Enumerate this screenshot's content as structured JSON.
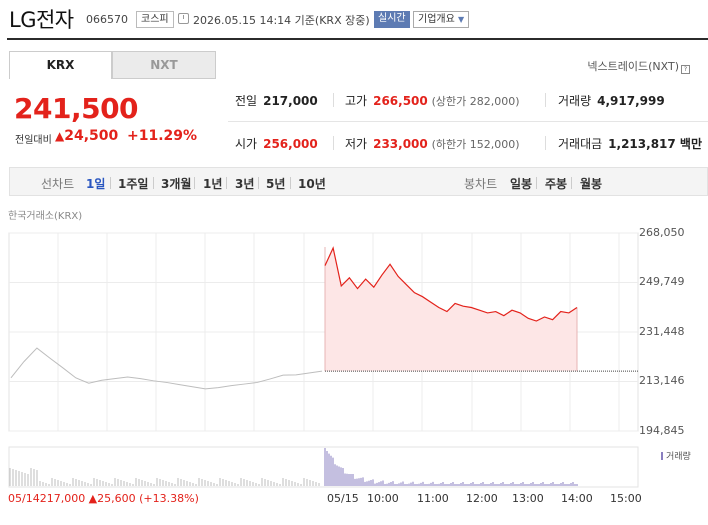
{
  "header": {
    "name": "LG전자",
    "code": "066570",
    "market": "코스피",
    "datetime": "2026.05.15 14:14 기준(KRX 장중)",
    "realtime": "실시간",
    "overview": "기업개요"
  },
  "tabs": {
    "krx": "KRX",
    "nxt": "NXT"
  },
  "nxt_link": "넥스트레이드(NXT)",
  "quote": {
    "price": "241,500",
    "change_label": "전일대비",
    "change": "24,500",
    "change_pct": "+11.29%",
    "prev_close_label": "전일",
    "prev_close": "217,000",
    "open_label": "시가",
    "open": "256,000",
    "high_label": "고가",
    "high": "266,500",
    "upper_limit": "(상한가 282,000)",
    "low_label": "저가",
    "low": "233,000",
    "lower_limit": "(하한가 152,000)",
    "volume_label": "거래량",
    "volume": "4,917,999",
    "value_label": "거래대금",
    "value": "1,213,817 백만"
  },
  "period_bar": {
    "line_label": "선차트",
    "periods": [
      "1일",
      "1주일",
      "3개월",
      "1년",
      "3년",
      "5년",
      "10년"
    ],
    "active": "1일",
    "candle_label": "봉차트",
    "candles": [
      "일봉",
      "주봉",
      "월봉"
    ]
  },
  "chart_data": {
    "type": "line",
    "source_label": "한국거래소(KRX)",
    "y_ticks": [
      "268,050",
      "249,749",
      "231,448",
      "213,146",
      "194,845"
    ],
    "ylim": [
      194845,
      268050
    ],
    "x_ticks": [
      "05/15",
      "10:00",
      "11:00",
      "12:00",
      "13:00",
      "14:00",
      "15:00"
    ],
    "prev_close": 217000,
    "prev_day": {
      "date": "05/14",
      "color": "#bdbdbd",
      "values": [
        214500,
        220500,
        225500,
        221800,
        218200,
        214500,
        212500,
        213600,
        214200,
        214800,
        214200,
        213400,
        212800,
        212000,
        211200,
        210400,
        210900,
        211600,
        212200,
        212800,
        214100,
        215500,
        215600,
        216300,
        217000
      ]
    },
    "today": {
      "color": "#e3221b",
      "fill": "#fde6e6",
      "values": [
        256000,
        262500,
        248500,
        251500,
        247500,
        251000,
        248000,
        252500,
        256500,
        252000,
        249000,
        246000,
        244500,
        242500,
        240500,
        239000,
        242000,
        241000,
        240500,
        239500,
        238500,
        239000,
        237500,
        239500,
        238500,
        236500,
        235500,
        237000,
        236000,
        239000,
        238500,
        240500
      ]
    },
    "volume_label": "거래량",
    "volume_color": "#8a7fc0",
    "footer_change": "05/14217,000 ▲25,600 (+13.38%)"
  }
}
